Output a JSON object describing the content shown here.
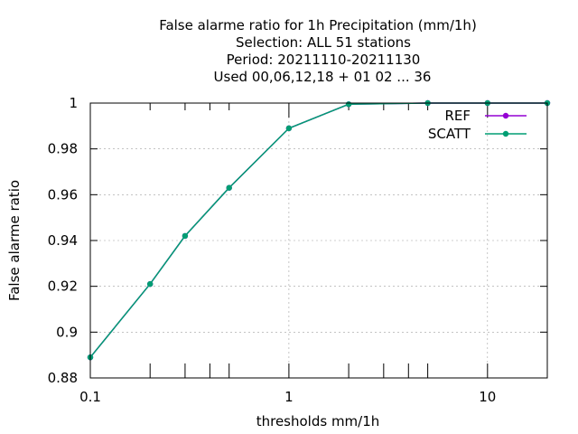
{
  "chart_data": {
    "type": "line",
    "title_lines": [
      "False alarme ratio  for 1h Precipitation (mm/1h)",
      "Selection: ALL     51 stations",
      "Period: 20211110-20211130",
      "Used  00,06,12,18 + 01 02 ... 36"
    ],
    "xlabel": "thresholds mm/1h",
    "ylabel": "False alarme ratio",
    "xscale": "log",
    "xlim": [
      0.1,
      20
    ],
    "ylim": [
      0.88,
      1.0
    ],
    "xticks": [
      {
        "value": 0.1,
        "label": "0.1"
      },
      {
        "value": 1,
        "label": "1"
      },
      {
        "value": 10,
        "label": "10"
      }
    ],
    "xminor_ticks": [
      0.2,
      0.3,
      0.4,
      0.5,
      2,
      3,
      4,
      5,
      20
    ],
    "yticks": [
      {
        "value": 0.88,
        "label": "0.88"
      },
      {
        "value": 0.9,
        "label": "0.9"
      },
      {
        "value": 0.92,
        "label": "0.92"
      },
      {
        "value": 0.94,
        "label": "0.94"
      },
      {
        "value": 0.96,
        "label": "0.96"
      },
      {
        "value": 0.98,
        "label": "0.98"
      },
      {
        "value": 1.0,
        "label": "1"
      }
    ],
    "x": [
      0.1,
      0.2,
      0.3,
      0.5,
      1,
      2,
      5,
      10,
      20
    ],
    "series": [
      {
        "name": "REF",
        "color": "#9400d3",
        "values": [
          0.889,
          0.921,
          0.942,
          0.963,
          0.989,
          0.9995,
          1.0,
          1.0,
          1.0
        ]
      },
      {
        "name": "SCATT",
        "color": "#009e73",
        "values": [
          0.889,
          0.921,
          0.942,
          0.963,
          0.989,
          0.9995,
          1.0,
          1.0,
          1.0
        ]
      }
    ],
    "legend_position": "top-right",
    "grid": true
  }
}
